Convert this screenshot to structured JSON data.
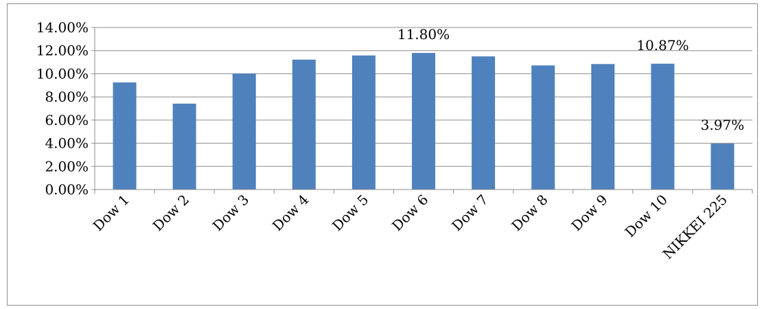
{
  "chart_data": {
    "type": "bar",
    "title": "",
    "xlabel": "",
    "ylabel": "",
    "categories": [
      "Dow 1",
      "Dow 2",
      "Dow 3",
      "Dow 4",
      "Dow 5",
      "Dow 6",
      "Dow 7",
      "Dow 8",
      "Dow 9",
      "Dow 10",
      "NIKKEI 225"
    ],
    "values": [
      9.25,
      7.42,
      10.02,
      11.22,
      11.58,
      11.8,
      11.5,
      10.72,
      10.84,
      10.87,
      3.97
    ],
    "ylim": [
      0,
      14
    ],
    "yticks": [
      0,
      2,
      4,
      6,
      8,
      10,
      12,
      14
    ],
    "ytick_labels": [
      "0.00%",
      "2.00%",
      "4.00%",
      "6.00%",
      "8.00%",
      "10.00%",
      "12.00%",
      "14.00%"
    ],
    "data_labels": [
      {
        "index": 5,
        "text": "11.80%"
      },
      {
        "index": 9,
        "text": "10.87%"
      },
      {
        "index": 10,
        "text": "3.97%"
      }
    ],
    "bar_color": "#4f81bd",
    "grid": true,
    "legend": "none"
  }
}
